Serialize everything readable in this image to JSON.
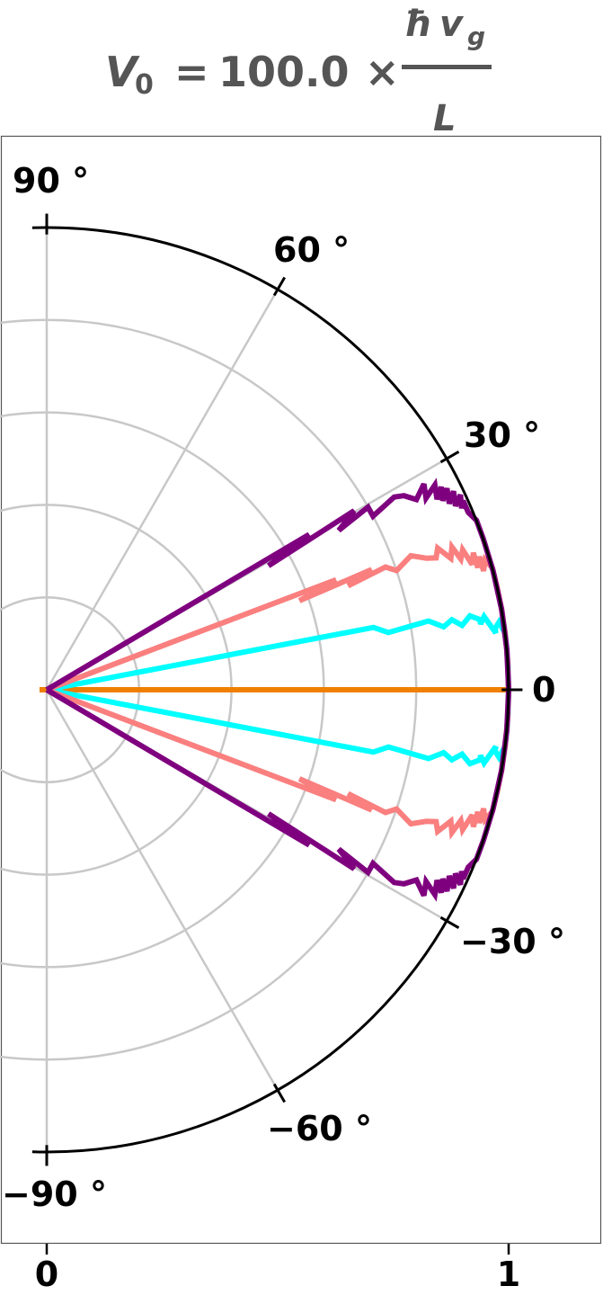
{
  "chart_data": {
    "type": "line",
    "coordinate_system": "polar",
    "title": {
      "lhs_symbol": "V",
      "lhs_subscript": "0",
      "equals": "=",
      "coefficient": "100.0",
      "times": "×",
      "numerator_hbar": "ħ",
      "numerator_v": "v",
      "numerator_subscript": "g",
      "denominator": "L"
    },
    "angle_range_deg": [
      -90,
      90
    ],
    "radius_range": [
      0,
      1
    ],
    "angle_ticks": [
      {
        "angle": 90,
        "label": "90 °"
      },
      {
        "angle": 60,
        "label": "60 °"
      },
      {
        "angle": 30,
        "label": "30 °"
      },
      {
        "angle": 0,
        "label": "0"
      },
      {
        "angle": -30,
        "label": "−30 °"
      },
      {
        "angle": -60,
        "label": "−60 °"
      },
      {
        "angle": -90,
        "label": "−90 °"
      }
    ],
    "radius_ticks": [
      {
        "value": 0,
        "label": "0"
      },
      {
        "value": 1,
        "label": "1"
      }
    ],
    "radial_gridlines": [
      0.2,
      0.4,
      0.6,
      0.8
    ],
    "angular_gridlines_deg": [
      -60,
      -30,
      30,
      60,
      90,
      -90
    ],
    "grid": true,
    "legend": "none",
    "series": [
      {
        "color": "#f07f00",
        "kind": "ray",
        "angles_deg": [
          0,
          0
        ],
        "radii": [
          0.99,
          0.99
        ]
      },
      {
        "color": "#00ffff",
        "kind": "lobe",
        "angles_deg": [
          10.0,
          10.8,
          9.5,
          10.2,
          9.0,
          9.8,
          8.8,
          9.9,
          9.2,
          8.6,
          9.5,
          7.2,
          7.8,
          8.5,
          7.0,
          8.2,
          7.6,
          6.9,
          5.5,
          3.0,
          0,
          -3.0,
          -5.5,
          -6.9,
          -7.6,
          -8.2,
          -7.0,
          -8.5,
          -7.8,
          -7.2,
          -9.5,
          -8.6,
          -9.2,
          -9.9,
          -8.8,
          -9.8,
          -9.0,
          -10.2,
          -9.5,
          -10.8,
          -10.0
        ],
        "radii": [
          0.0,
          0.72,
          0.75,
          0.84,
          0.87,
          0.89,
          0.91,
          0.93,
          0.95,
          0.95,
          0.96,
          0.98,
          0.98,
          0.99,
          1.0,
          1.0,
          1.0,
          1.0,
          1.0,
          1.0,
          1.0,
          1.0,
          1.0,
          1.0,
          1.0,
          1.0,
          1.0,
          0.99,
          0.98,
          0.98,
          0.96,
          0.95,
          0.95,
          0.93,
          0.91,
          0.89,
          0.87,
          0.84,
          0.75,
          0.72,
          0.0
        ]
      },
      {
        "color": "#fa7f7f",
        "kind": "lobe",
        "angles_deg": [
          20.0,
          20.8,
          19.4,
          20.3,
          19.0,
          19.9,
          18.8,
          20.2,
          19.1,
          18.7,
          19.9,
          18.0,
          19.4,
          17.5,
          18.6,
          16.4,
          17.8,
          15.8,
          17.1,
          15.2,
          16.5,
          15.3,
          14.0,
          12.5,
          10.0,
          7.0,
          3.5,
          0,
          -3.5,
          -7.0,
          -10.0,
          -12.5,
          -14.0,
          -15.3,
          -16.5,
          -15.2,
          -17.1,
          -15.8,
          -17.8,
          -16.4,
          -18.6,
          -17.5,
          -19.4,
          -18.0,
          -19.9,
          -18.7,
          -19.1,
          -20.2,
          -18.8,
          -19.9,
          -19.0,
          -20.3,
          -19.4,
          -20.8,
          -20.0
        ],
        "radii": [
          0.0,
          0.67,
          0.58,
          0.75,
          0.69,
          0.78,
          0.8,
          0.84,
          0.87,
          0.89,
          0.9,
          0.92,
          0.93,
          0.94,
          0.95,
          0.96,
          0.97,
          0.97,
          0.98,
          0.98,
          0.99,
          1.0,
          1.0,
          1.0,
          1.0,
          1.0,
          1.0,
          1.0,
          1.0,
          1.0,
          1.0,
          1.0,
          1.0,
          1.0,
          0.99,
          0.98,
          0.98,
          0.97,
          0.97,
          0.96,
          0.95,
          0.94,
          0.93,
          0.92,
          0.9,
          0.89,
          0.87,
          0.84,
          0.8,
          0.78,
          0.69,
          0.75,
          0.58,
          0.67,
          0.0
        ]
      },
      {
        "color": "#7f007f",
        "kind": "lobe",
        "angles_deg": [
          30.0,
          30.6,
          29.2,
          30.2,
          28.6,
          29.6,
          28.0,
          29.0,
          28.5,
          27.2,
          28.6,
          26.8,
          27.8,
          26.0,
          27.2,
          25.5,
          26.7,
          24.8,
          26.0,
          24.2,
          25.2,
          23.6,
          24.4,
          22.8,
          21.5,
          19.0,
          15.0,
          10.0,
          5.0,
          0,
          -5.0,
          -10.0,
          -15.0,
          -19.0,
          -21.5,
          -22.8,
          -24.4,
          -23.6,
          -25.2,
          -24.2,
          -26.0,
          -24.8,
          -26.7,
          -25.5,
          -27.2,
          -26.0,
          -27.8,
          -26.8,
          -28.6,
          -27.2,
          -28.5,
          -29.0,
          -28.0,
          -29.6,
          -28.6,
          -30.2,
          -29.2,
          -30.6,
          -30.0
        ],
        "radii": [
          0.0,
          0.66,
          0.55,
          0.77,
          0.72,
          0.8,
          0.8,
          0.86,
          0.88,
          0.9,
          0.93,
          0.92,
          0.95,
          0.94,
          0.96,
          0.95,
          0.97,
          0.96,
          0.98,
          0.97,
          0.99,
          0.98,
          0.99,
          0.99,
          1.0,
          1.0,
          1.0,
          1.0,
          1.0,
          1.0,
          1.0,
          1.0,
          1.0,
          1.0,
          1.0,
          0.99,
          0.99,
          0.98,
          0.99,
          0.97,
          0.98,
          0.96,
          0.97,
          0.95,
          0.96,
          0.94,
          0.95,
          0.92,
          0.93,
          0.9,
          0.88,
          0.86,
          0.8,
          0.8,
          0.72,
          0.77,
          0.55,
          0.66,
          0.0
        ]
      }
    ]
  }
}
